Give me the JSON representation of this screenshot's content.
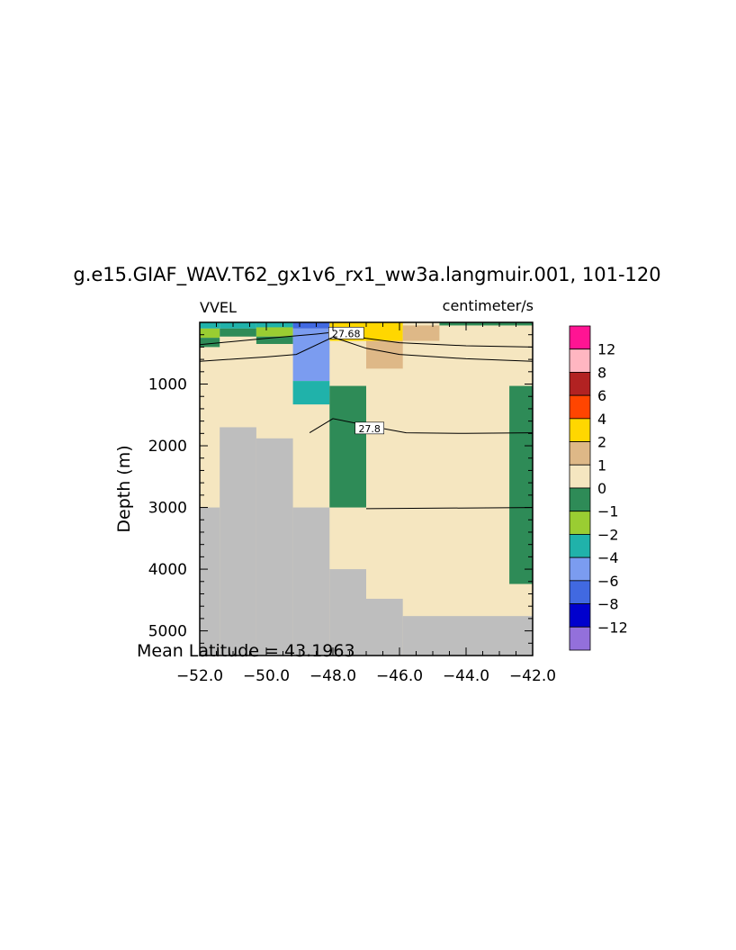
{
  "chart_data": {
    "type": "heatmap",
    "title": "g.e15.GIAF_WAV.T62_gx1v6_rx1_ww3a.langmuir.001, 101-120",
    "variable": "VVEL",
    "units": "centimeter/s",
    "ylabel": "Depth (m)",
    "xlabel": "",
    "annotation": "Mean Latitude = 43.1963",
    "xlim": [
      -52.0,
      -42.0
    ],
    "ylim": [
      5400,
      0
    ],
    "y_inverted": true,
    "x_ticks": [
      -52.0,
      -50.0,
      -48.0,
      -46.0,
      -44.0,
      -42.0
    ],
    "x_tick_labels": [
      "−52.0",
      "−50.0",
      "−48.0",
      "−46.0",
      "−44.0",
      "−42.0"
    ],
    "y_ticks": [
      1000,
      2000,
      3000,
      4000,
      5000
    ],
    "y_tick_labels": [
      "1000",
      "2000",
      "3000",
      "4000",
      "5000"
    ],
    "grid": false,
    "legend_placement": "right",
    "colorbar": {
      "labels": [
        "12",
        "8",
        "6",
        "4",
        "2",
        "1",
        "0",
        "−1",
        "−2",
        "−4",
        "−6",
        "−8",
        "−12"
      ],
      "bins": [
        {
          "color": "#ff1493"
        },
        {
          "color": "#ffb6c1"
        },
        {
          "color": "#b22222"
        },
        {
          "color": "#ff4500"
        },
        {
          "color": "#ffd700"
        },
        {
          "color": "#deb887"
        },
        {
          "color": "#f5e6c0"
        },
        {
          "color": "#2e8b57"
        },
        {
          "color": "#9acd32"
        },
        {
          "color": "#20b2aa"
        },
        {
          "color": "#7b9cf0"
        },
        {
          "color": "#4169e1"
        },
        {
          "color": "#0000cd"
        },
        {
          "color": "#9370db"
        }
      ]
    },
    "land_color": "#bebebe",
    "background_fill": "#f5e6c0",
    "land_depth_profile": [
      {
        "x0": -52.0,
        "x1": -51.4,
        "depth": 3000
      },
      {
        "x0": -51.4,
        "x1": -50.3,
        "depth": 1700
      },
      {
        "x0": -50.3,
        "x1": -49.2,
        "depth": 1880
      },
      {
        "x0": -49.2,
        "x1": -48.1,
        "depth": 3000
      },
      {
        "x0": -48.1,
        "x1": -47.0,
        "depth": 4000
      },
      {
        "x0": -47.0,
        "x1": -45.9,
        "depth": 4480
      },
      {
        "x0": -45.9,
        "x1": -42.0,
        "depth": 4760
      }
    ],
    "cells": [
      {
        "x0": -52.0,
        "x1": -51.4,
        "d0": 0,
        "d1": 100,
        "color": "#20b2aa"
      },
      {
        "x0": -52.0,
        "x1": -51.4,
        "d0": 100,
        "d1": 250,
        "color": "#9acd32"
      },
      {
        "x0": -52.0,
        "x1": -51.4,
        "d0": 250,
        "d1": 400,
        "color": "#2e8b57"
      },
      {
        "x0": -51.4,
        "x1": -50.3,
        "d0": 0,
        "d1": 100,
        "color": "#20b2aa"
      },
      {
        "x0": -51.4,
        "x1": -50.3,
        "d0": 100,
        "d1": 230,
        "color": "#2e8b57"
      },
      {
        "x0": -50.3,
        "x1": -49.2,
        "d0": 0,
        "d1": 80,
        "color": "#20b2aa"
      },
      {
        "x0": -50.3,
        "x1": -49.2,
        "d0": 80,
        "d1": 230,
        "color": "#9acd32"
      },
      {
        "x0": -50.3,
        "x1": -49.2,
        "d0": 230,
        "d1": 350,
        "color": "#2e8b57"
      },
      {
        "x0": -49.2,
        "x1": -48.1,
        "d0": 0,
        "d1": 100,
        "color": "#4169e1"
      },
      {
        "x0": -49.2,
        "x1": -48.1,
        "d0": 100,
        "d1": 950,
        "color": "#7b9cf0"
      },
      {
        "x0": -49.2,
        "x1": -48.1,
        "d0": 950,
        "d1": 1330,
        "color": "#20b2aa"
      },
      {
        "x0": -48.1,
        "x1": -47.0,
        "d0": 0,
        "d1": 300,
        "color": "#ffd700"
      },
      {
        "x0": -48.1,
        "x1": -47.0,
        "d0": 1030,
        "d1": 3000,
        "color": "#2e8b57"
      },
      {
        "x0": -47.0,
        "x1": -45.9,
        "d0": 0,
        "d1": 300,
        "color": "#ffd700"
      },
      {
        "x0": -47.0,
        "x1": -45.9,
        "d0": 300,
        "d1": 750,
        "color": "#deb887"
      },
      {
        "x0": -45.9,
        "x1": -44.8,
        "d0": 50,
        "d1": 300,
        "color": "#deb887"
      },
      {
        "x0": -44.8,
        "x1": -42.0,
        "d0": 0,
        "d1": 50,
        "color": "#2e8b57"
      },
      {
        "x0": -42.7,
        "x1": -42.0,
        "d0": 1030,
        "d1": 4240,
        "color": "#2e8b57"
      }
    ],
    "contours": [
      {
        "label": "27.68",
        "label_at": [
          -47.6,
          180
        ],
        "points": [
          [
            -52.0,
            360
          ],
          [
            -50.0,
            260
          ],
          [
            -48.5,
            190
          ],
          [
            -48.0,
            160
          ],
          [
            -47.0,
            260
          ],
          [
            -46.0,
            330
          ],
          [
            -44.0,
            380
          ],
          [
            -42.0,
            400
          ]
        ]
      },
      {
        "label": "",
        "label_at": null,
        "points": [
          [
            -52.0,
            630
          ],
          [
            -50.0,
            560
          ],
          [
            -49.1,
            520
          ],
          [
            -48.0,
            240
          ],
          [
            -47.0,
            420
          ],
          [
            -46.0,
            520
          ],
          [
            -44.0,
            590
          ],
          [
            -42.0,
            630
          ]
        ]
      },
      {
        "label": "27.8",
        "label_at": [
          -46.9,
          1720
        ],
        "points": [
          [
            -48.7,
            1790
          ],
          [
            -48.0,
            1560
          ],
          [
            -46.5,
            1720
          ],
          [
            -45.8,
            1790
          ],
          [
            -44.0,
            1800
          ],
          [
            -42.0,
            1790
          ]
        ]
      },
      {
        "label": "",
        "label_at": null,
        "points": [
          [
            -47.0,
            3020
          ],
          [
            -42.0,
            3000
          ]
        ]
      }
    ]
  }
}
